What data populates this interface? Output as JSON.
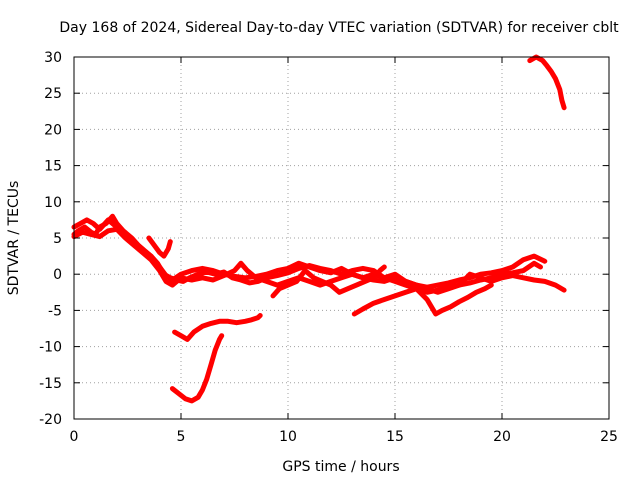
{
  "chart_data": {
    "type": "line",
    "title": "Day 168 of 2024, Sidereal Day-to-day VTEC variation (SDTVAR) for receiver cblt",
    "xlabel": "GPS time / hours",
    "ylabel": "SDTVAR / TECUs",
    "xlim": [
      0,
      25
    ],
    "ylim": [
      -20,
      30
    ],
    "xticks": [
      0,
      5,
      10,
      15,
      20,
      25
    ],
    "yticks": [
      -20,
      -15,
      -10,
      -5,
      0,
      5,
      10,
      15,
      20,
      25,
      30
    ],
    "grid": true,
    "color": "#ff0000",
    "series": [
      {
        "name": "s1",
        "points": [
          [
            0,
            5.5
          ],
          [
            0.2,
            6
          ],
          [
            0.5,
            6.5
          ],
          [
            0.8,
            5.8
          ],
          [
            1.0,
            5.5
          ],
          [
            1.2,
            6.5
          ],
          [
            1.5,
            7
          ],
          [
            1.8,
            8
          ],
          [
            2.0,
            7
          ],
          [
            2.3,
            6
          ],
          [
            2.7,
            5
          ],
          [
            3.0,
            4
          ],
          [
            3.3,
            3.2
          ],
          [
            3.6,
            2.5
          ],
          [
            3.9,
            1.5
          ],
          [
            4.2,
            0
          ],
          [
            4.5,
            -0.5
          ],
          [
            4.8,
            -0.8
          ],
          [
            5.1,
            -1
          ],
          [
            5.4,
            -0.5
          ],
          [
            5.8,
            0
          ],
          [
            6.2,
            0.3
          ],
          [
            6.6,
            0
          ],
          [
            7.0,
            0.3
          ],
          [
            7.4,
            -0.5
          ],
          [
            7.8,
            -0.8
          ],
          [
            8.2,
            -1.2
          ],
          [
            8.6,
            -1
          ],
          [
            9.0,
            -0.5
          ],
          [
            9.5,
            -0.2
          ],
          [
            10.0,
            0.2
          ],
          [
            10.5,
            0.8
          ],
          [
            11.0,
            1.2
          ],
          [
            11.5,
            0.8
          ],
          [
            12.0,
            0.5
          ],
          [
            12.5,
            0
          ],
          [
            13.0,
            0.5
          ],
          [
            13.5,
            0.8
          ],
          [
            14.0,
            0.5
          ],
          [
            14.5,
            -0.5
          ],
          [
            15.0,
            -1
          ],
          [
            15.5,
            -1.5
          ],
          [
            16.0,
            -2
          ],
          [
            16.5,
            -2.5
          ],
          [
            17.0,
            -2.2
          ],
          [
            17.5,
            -1.8
          ],
          [
            18.0,
            -1.5
          ],
          [
            18.5,
            -1.2
          ],
          [
            19.0,
            -0.8
          ],
          [
            19.5,
            -0.5
          ],
          [
            20.0,
            0
          ],
          [
            20.5,
            0.2
          ],
          [
            21.0,
            0.5
          ],
          [
            21.5,
            1.5
          ],
          [
            21.8,
            1
          ]
        ]
      },
      {
        "name": "s2",
        "points": [
          [
            0,
            6.5
          ],
          [
            0.3,
            7
          ],
          [
            0.6,
            7.5
          ],
          [
            0.9,
            7
          ],
          [
            1.2,
            6.2
          ],
          [
            1.6,
            7.5
          ],
          [
            2.0,
            6.5
          ],
          [
            2.4,
            5.5
          ],
          [
            2.8,
            4.5
          ],
          [
            3.2,
            3.5
          ],
          [
            3.6,
            2.5
          ],
          [
            4.0,
            1
          ],
          [
            4.3,
            -0.2
          ],
          [
            4.6,
            -0.8
          ],
          [
            5.0,
            0
          ],
          [
            5.5,
            0.5
          ],
          [
            6.0,
            0.8
          ],
          [
            6.5,
            0.5
          ],
          [
            7.0,
            0
          ],
          [
            7.5,
            -0.3
          ],
          [
            8.0,
            -0.5
          ],
          [
            8.5,
            -0.3
          ],
          [
            9.0,
            0
          ],
          [
            9.5,
            0.5
          ],
          [
            10.0,
            0.8
          ],
          [
            10.5,
            1.5
          ],
          [
            11.0,
            1
          ],
          [
            11.5,
            0.5
          ],
          [
            12.0,
            0.2
          ],
          [
            12.5,
            0.8
          ],
          [
            13.0,
            0
          ],
          [
            13.5,
            -0.5
          ],
          [
            14.0,
            -0.8
          ],
          [
            14.5,
            -1
          ],
          [
            15.0,
            -0.5
          ],
          [
            15.5,
            -1
          ],
          [
            16.0,
            -1.5
          ],
          [
            16.5,
            -1.8
          ],
          [
            17.0,
            -1.5
          ],
          [
            17.5,
            -1.2
          ],
          [
            18.0,
            -0.8
          ],
          [
            18.5,
            -0.5
          ],
          [
            19.0,
            0
          ],
          [
            19.5,
            0.2
          ],
          [
            20.0,
            0.5
          ],
          [
            20.5,
            1
          ],
          [
            21.0,
            2
          ],
          [
            21.5,
            2.5
          ],
          [
            22.0,
            1.8
          ]
        ]
      },
      {
        "name": "s3",
        "points": [
          [
            0,
            5.2
          ],
          [
            0.4,
            5.8
          ],
          [
            0.8,
            5.5
          ],
          [
            1.2,
            5.2
          ],
          [
            1.6,
            6
          ],
          [
            2.0,
            6.2
          ],
          [
            2.4,
            5
          ],
          [
            2.8,
            4
          ],
          [
            3.2,
            3
          ],
          [
            3.6,
            2
          ],
          [
            4.0,
            0.5
          ],
          [
            4.3,
            -1
          ],
          [
            4.6,
            -1.5
          ],
          [
            5.0,
            -0.5
          ],
          [
            5.5,
            -0.8
          ],
          [
            6.0,
            -0.5
          ],
          [
            6.5,
            -0.8
          ],
          [
            7.0,
            -0.2
          ],
          [
            7.5,
            0.5
          ],
          [
            7.8,
            1.5
          ],
          [
            8.1,
            0.5
          ],
          [
            8.5,
            -0.5
          ],
          [
            9.0,
            -1
          ],
          [
            9.5,
            -1.5
          ],
          [
            10.0,
            -1
          ],
          [
            10.5,
            -0.5
          ],
          [
            11.0,
            -1
          ],
          [
            11.5,
            -1.5
          ],
          [
            12.0,
            -1
          ],
          [
            12.5,
            -0.5
          ],
          [
            13.0,
            0
          ],
          [
            13.5,
            -0.5
          ],
          [
            14.0,
            0
          ],
          [
            14.5,
            -0.5
          ],
          [
            15.0,
            0
          ],
          [
            15.5,
            -1
          ],
          [
            16.0,
            -1.5
          ],
          [
            16.5,
            -2
          ],
          [
            17.0,
            -2.5
          ],
          [
            17.5,
            -2
          ],
          [
            18.0,
            -1.5
          ],
          [
            18.5,
            0
          ],
          [
            19.0,
            -0.5
          ],
          [
            19.5,
            -1
          ],
          [
            20.0,
            -0.5
          ],
          [
            20.5,
            -0.2
          ],
          [
            21.0,
            -0.5
          ],
          [
            21.5,
            -0.8
          ],
          [
            22.0,
            -1
          ],
          [
            22.5,
            -1.5
          ],
          [
            22.9,
            -2.2
          ]
        ]
      },
      {
        "name": "s4",
        "points": [
          [
            3.5,
            5
          ],
          [
            3.8,
            3.8
          ],
          [
            4.0,
            3
          ],
          [
            4.2,
            2.5
          ],
          [
            4.4,
            3.5
          ],
          [
            4.5,
            4.5
          ]
        ]
      },
      {
        "name": "s5",
        "points": [
          [
            9.3,
            -3
          ],
          [
            9.6,
            -2
          ],
          [
            10.0,
            -1.5
          ],
          [
            10.4,
            -1
          ],
          [
            10.8,
            0.5
          ],
          [
            11.2,
            -0.5
          ],
          [
            11.6,
            -1
          ],
          [
            12.0,
            -1.5
          ],
          [
            12.4,
            -2.5
          ],
          [
            12.8,
            -2
          ],
          [
            13.2,
            -1.5
          ],
          [
            13.6,
            -1
          ],
          [
            14.0,
            -0.5
          ],
          [
            14.3,
            0.5
          ],
          [
            14.5,
            1
          ]
        ]
      },
      {
        "name": "s6",
        "points": [
          [
            13.1,
            -5.5
          ],
          [
            13.5,
            -4.8
          ],
          [
            14.0,
            -4
          ],
          [
            14.5,
            -3.5
          ],
          [
            15.0,
            -3
          ],
          [
            15.5,
            -2.5
          ],
          [
            16.0,
            -2
          ],
          [
            16.5,
            -3.5
          ],
          [
            16.9,
            -5.5
          ],
          [
            17.2,
            -5
          ],
          [
            17.6,
            -4.5
          ],
          [
            18.0,
            -3.8
          ],
          [
            18.4,
            -3.2
          ],
          [
            18.8,
            -2.5
          ],
          [
            19.2,
            -2
          ],
          [
            19.5,
            -1.5
          ]
        ]
      },
      {
        "name": "s7",
        "points": [
          [
            4.7,
            -8
          ],
          [
            5.0,
            -8.5
          ],
          [
            5.3,
            -9
          ],
          [
            5.6,
            -8
          ],
          [
            6.0,
            -7.2
          ],
          [
            6.4,
            -6.8
          ],
          [
            6.8,
            -6.5
          ],
          [
            7.2,
            -6.5
          ],
          [
            7.6,
            -6.7
          ],
          [
            8.0,
            -6.5
          ],
          [
            8.3,
            -6.3
          ],
          [
            8.6,
            -6
          ],
          [
            8.7,
            -5.7
          ]
        ]
      },
      {
        "name": "s8",
        "points": [
          [
            4.6,
            -15.8
          ],
          [
            4.9,
            -16.5
          ],
          [
            5.2,
            -17.2
          ],
          [
            5.5,
            -17.5
          ],
          [
            5.8,
            -17
          ],
          [
            6.0,
            -16
          ],
          [
            6.2,
            -14.5
          ],
          [
            6.4,
            -12.5
          ],
          [
            6.6,
            -10.5
          ],
          [
            6.8,
            -9
          ],
          [
            6.9,
            -8.5
          ]
        ]
      },
      {
        "name": "s9",
        "points": [
          [
            21.3,
            29.5
          ],
          [
            21.6,
            30
          ],
          [
            21.9,
            29.5
          ],
          [
            22.1,
            28.8
          ],
          [
            22.3,
            28
          ],
          [
            22.5,
            27
          ],
          [
            22.7,
            25.5
          ],
          [
            22.8,
            24
          ],
          [
            22.9,
            23
          ]
        ]
      }
    ]
  }
}
